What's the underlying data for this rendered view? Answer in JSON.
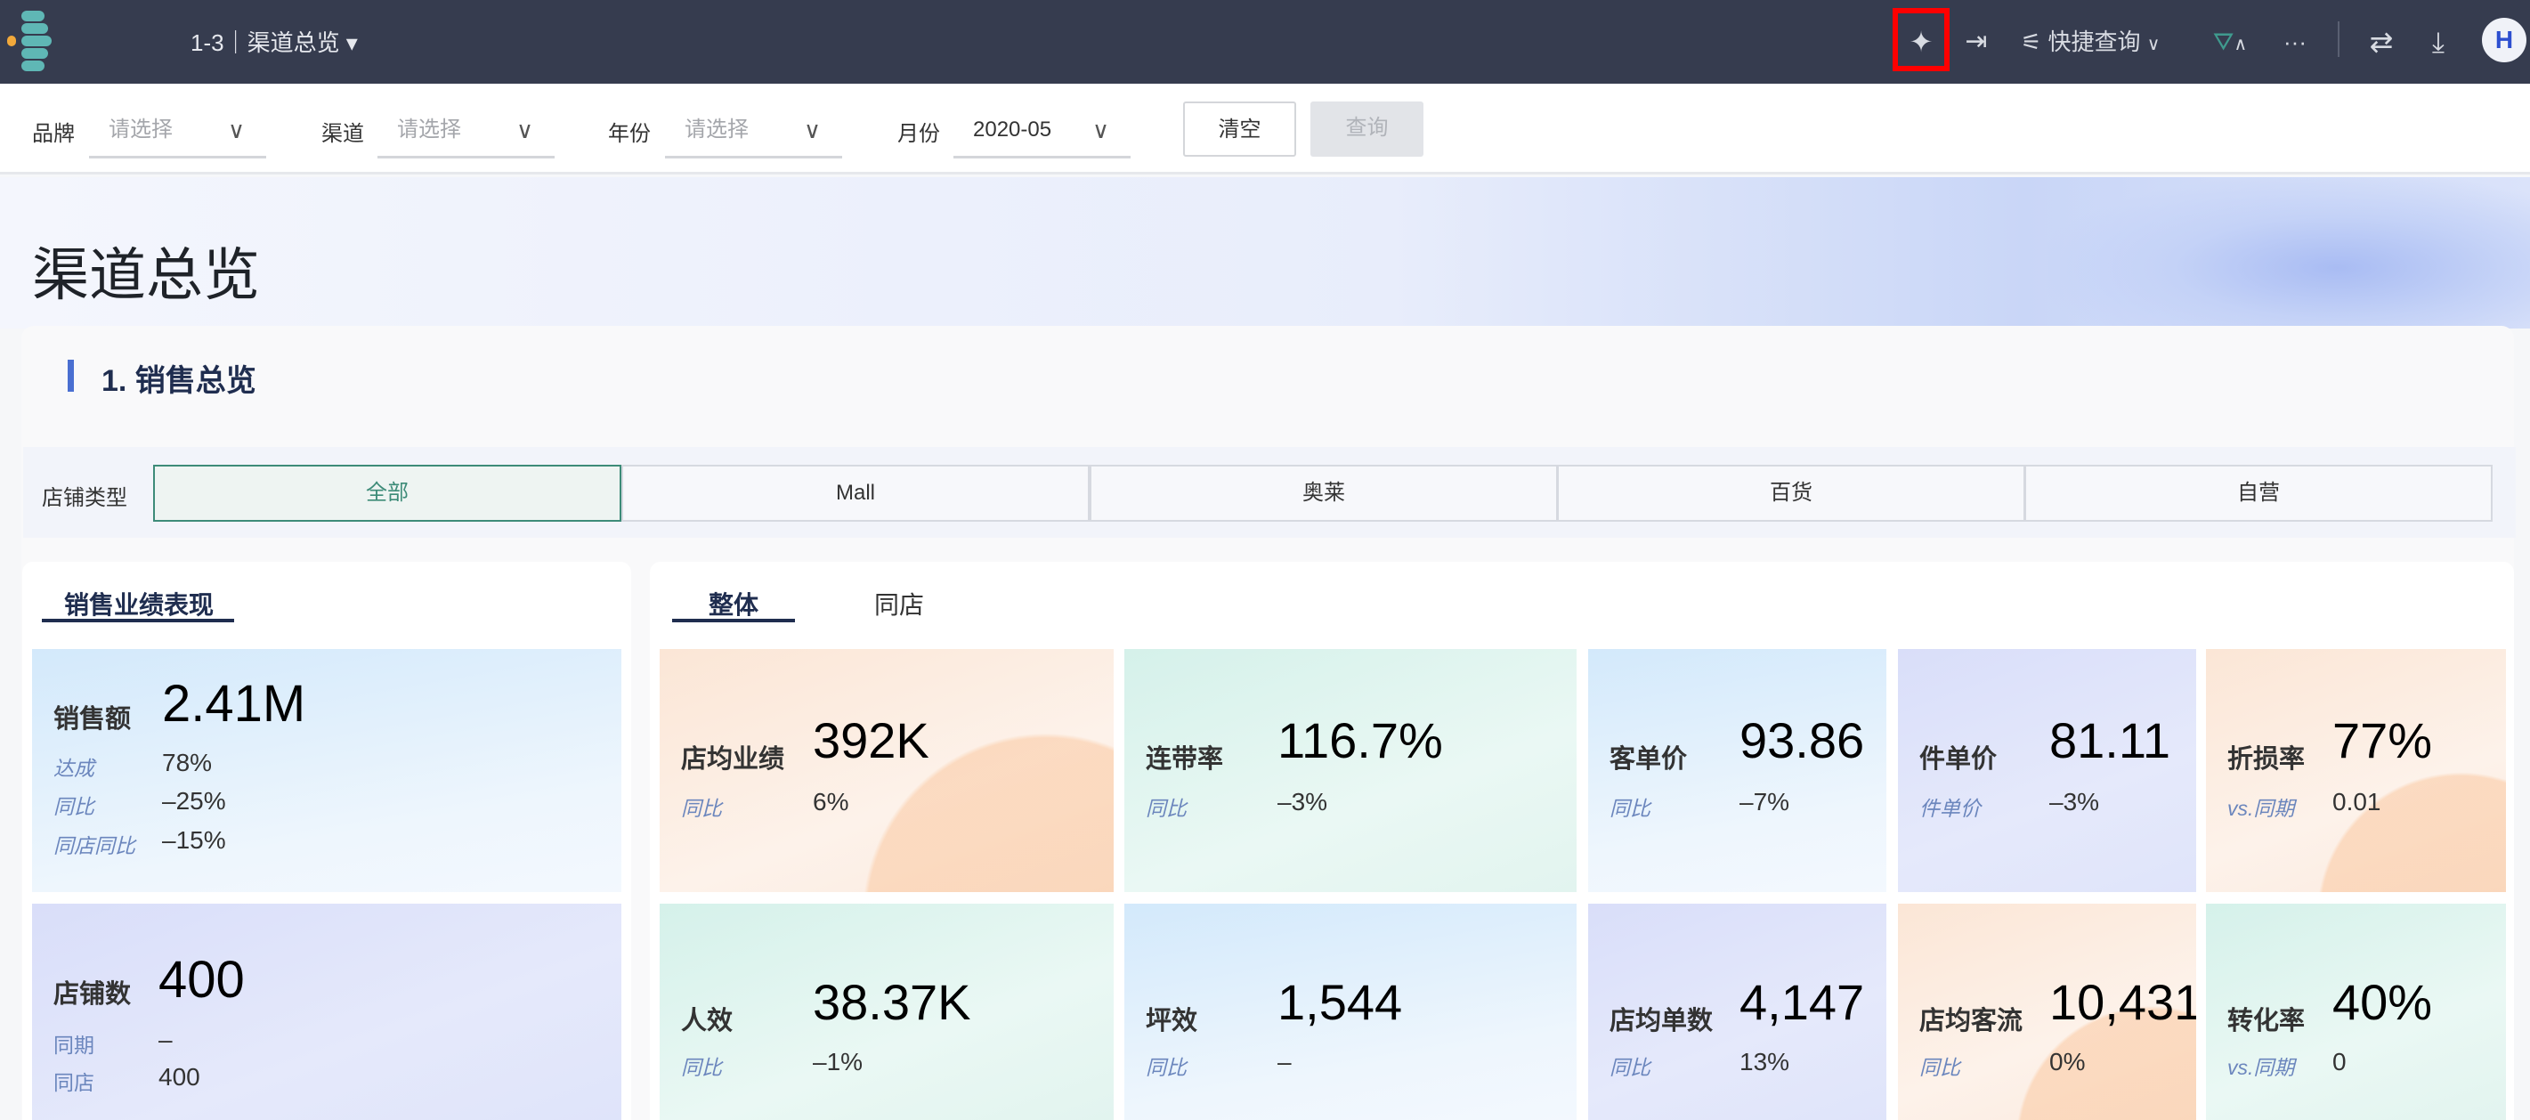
{
  "topbar": {
    "breadcrumb": "1-3｜渠道总览 ▾",
    "quick_query": "快捷查询",
    "avatar_text": "H",
    "icons": [
      "menu-logo-icon",
      "sparkle-ai-icon",
      "export-icon",
      "sliders-icon",
      "chevron-down-icon",
      "filter-icon",
      "chevron-up-icon",
      "more-icon",
      "swap-icon",
      "download-icon"
    ]
  },
  "filters": {
    "brand": {
      "label": "品牌",
      "placeholder": "请选择"
    },
    "channel": {
      "label": "渠道",
      "placeholder": "请选择"
    },
    "year": {
      "label": "年份",
      "placeholder": "请选择"
    },
    "month": {
      "label": "月份",
      "value": "2020-05"
    },
    "clear_label": "清空",
    "query_label": "查询"
  },
  "page": {
    "title": "渠道总览",
    "section_title": "1. 销售总览"
  },
  "store_type": {
    "label": "店铺类型",
    "options": [
      "全部",
      "Mall",
      "奥莱",
      "百货",
      "自营"
    ],
    "selected": "全部"
  },
  "left_panel": {
    "tab": "销售业绩表现",
    "sales": {
      "label": "销售额",
      "value": "2.41M",
      "rows": [
        {
          "k": "达成",
          "v": "78%"
        },
        {
          "k": "同比",
          "v": "–25%"
        },
        {
          "k": "同店同比",
          "v": "–15%"
        }
      ]
    },
    "stores": {
      "label": "店铺数",
      "value": "400",
      "rows": [
        {
          "k": "同期",
          "v": "–"
        },
        {
          "k": "同店",
          "v": "400"
        }
      ]
    }
  },
  "right_panel": {
    "tabs": [
      "整体",
      "同店"
    ],
    "active_tab": "整体",
    "cards": [
      {
        "label": "店均业绩",
        "value": "392K",
        "sub_label": "同比",
        "sub_value": "6%"
      },
      {
        "label": "连带率",
        "value": "116.7%",
        "sub_label": "同比",
        "sub_value": "–3%"
      },
      {
        "label": "客单价",
        "value": "93.86",
        "sub_label": "同比",
        "sub_value": "–7%"
      },
      {
        "label": "件单价",
        "value": "81.11",
        "sub_label": "件单价",
        "sub_value": "–3%"
      },
      {
        "label": "折损率",
        "value": "77%",
        "sub_label": "vs.同期",
        "sub_value": "0.01"
      },
      {
        "label": "人效",
        "value": "38.37K",
        "sub_label": "同比",
        "sub_value": "–1%"
      },
      {
        "label": "坪效",
        "value": "1,544",
        "sub_label": "同比",
        "sub_value": "–"
      },
      {
        "label": "店均单数",
        "value": "4,147",
        "sub_label": "同比",
        "sub_value": "13%"
      },
      {
        "label": "店均客流",
        "value": "10,431",
        "sub_label": "同比",
        "sub_value": "0%"
      },
      {
        "label": "转化率",
        "value": "40%",
        "sub_label": "vs.同期",
        "sub_value": "0"
      }
    ]
  },
  "colors": {
    "topbar": "#363c4f",
    "accent_green": "#3d8b78",
    "title_navy": "#1f2d4f",
    "highlight": "#ff0000"
  }
}
